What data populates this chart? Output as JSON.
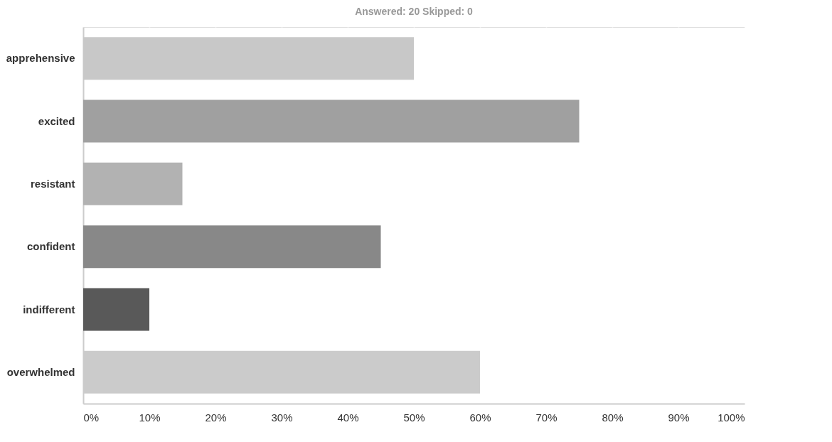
{
  "chart_data": {
    "type": "bar",
    "orientation": "horizontal",
    "title": "Answered: 20    Skipped: 0",
    "categories": [
      "apprehensive",
      "excited",
      "resistant",
      "confident",
      "indifferent",
      "overwhelmed"
    ],
    "values": [
      50,
      75,
      15,
      45,
      10,
      60
    ],
    "colors": [
      "#c8c8c8",
      "#a0a0a0",
      "#b2b2b2",
      "#888888",
      "#595959",
      "#cbcbcb"
    ],
    "xlim": [
      0,
      100
    ],
    "xticks": [
      {
        "value": 0,
        "label": "0%"
      },
      {
        "value": 10,
        "label": "10%"
      },
      {
        "value": 20,
        "label": "20%"
      },
      {
        "value": 30,
        "label": "30%"
      },
      {
        "value": 40,
        "label": "40%"
      },
      {
        "value": 50,
        "label": "50%"
      },
      {
        "value": 60,
        "label": "60%"
      },
      {
        "value": 70,
        "label": "70%"
      },
      {
        "value": 80,
        "label": "80%"
      },
      {
        "value": 90,
        "label": "90%"
      },
      {
        "value": 100,
        "label": "100%"
      }
    ],
    "grid": "x",
    "legend": false
  }
}
